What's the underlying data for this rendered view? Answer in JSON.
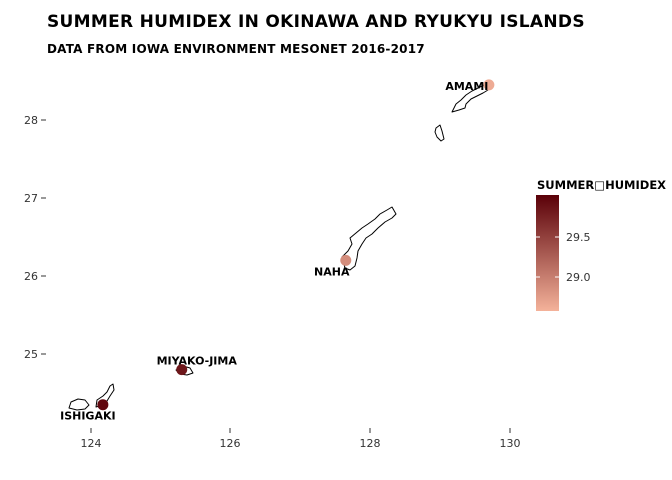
{
  "title": "SUMMER HUMIDEX IN OKINAWA AND RYUKYU ISLANDS",
  "subtitle": "DATA FROM IOWA ENVIRONMENT MESONET 2016-2017",
  "axes": {
    "x_ticks": [
      "124",
      "126",
      "128",
      "130"
    ],
    "y_ticks": [
      "25",
      "26",
      "27",
      "28"
    ]
  },
  "legend": {
    "title": "SUMMER□HUMIDEX",
    "labels": [
      "29.5",
      "29.0"
    ],
    "color_low": "#F4B29A",
    "color_high": "#5A0008"
  },
  "stations": [
    {
      "name": "AMAMI",
      "lon": 129.7,
      "lat": 28.45,
      "humidex": 28.85
    },
    {
      "name": "NAHA",
      "lon": 127.65,
      "lat": 26.2,
      "humidex": 29.05
    },
    {
      "name": "MIYAKO-JIMA",
      "lon": 125.3,
      "lat": 24.8,
      "humidex": 29.85
    },
    {
      "name": "ISHIGAKI",
      "lon": 124.17,
      "lat": 24.35,
      "humidex": 29.95
    }
  ]
}
